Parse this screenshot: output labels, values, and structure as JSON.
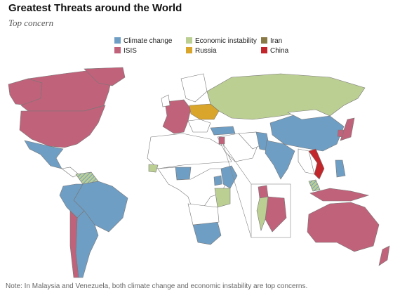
{
  "header": {
    "title": "Greatest Threats around the World",
    "subtitle": "Top concern"
  },
  "legend": [
    {
      "label": "Climate change",
      "color": "#6f9ec4"
    },
    {
      "label": "ISIS",
      "color": "#c0627a"
    },
    {
      "label": "Economic instability",
      "color": "#bccf93"
    },
    {
      "label": "Russia",
      "color": "#d9a52a"
    },
    {
      "label": "Iran",
      "color": "#8a7a45"
    },
    {
      "label": "China",
      "color": "#c3262a"
    }
  ],
  "note": "Note: In Malaysia and Venezuela, both climate change and economic instability are top concerns."
}
